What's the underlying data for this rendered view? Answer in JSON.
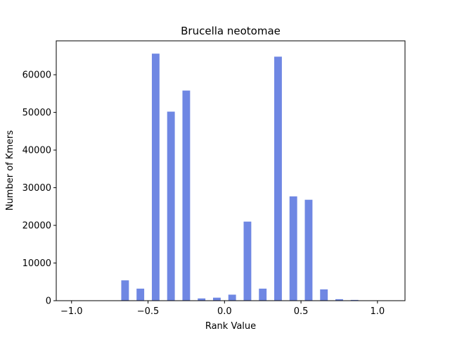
{
  "chart_data": {
    "type": "bar",
    "title": "Brucella neotomae",
    "xlabel": "Rank Value",
    "ylabel": "Number of Kmers",
    "xlim": [
      -1.1,
      1.18
    ],
    "ylim": [
      0,
      69000
    ],
    "xticks": [
      -1.0,
      -0.5,
      0.0,
      0.5,
      1.0
    ],
    "xtick_labels": [
      "−1.0",
      "−0.5",
      "0.0",
      "0.5",
      "1.0"
    ],
    "yticks": [
      0,
      10000,
      20000,
      30000,
      40000,
      50000,
      60000
    ],
    "ytick_labels": [
      "0",
      "10000",
      "20000",
      "30000",
      "40000",
      "50000",
      "60000"
    ],
    "bar_width": 0.05,
    "color": "#6f87e3",
    "grid": false,
    "x": [
      -0.65,
      -0.55,
      -0.45,
      -0.35,
      -0.25,
      -0.15,
      -0.05,
      0.05,
      0.15,
      0.25,
      0.35,
      0.45,
      0.55,
      0.65,
      0.75,
      0.85
    ],
    "values": [
      5400,
      3200,
      65600,
      50200,
      55800,
      600,
      800,
      1600,
      21000,
      3200,
      64800,
      27700,
      26800,
      3000,
      400,
      200
    ]
  }
}
